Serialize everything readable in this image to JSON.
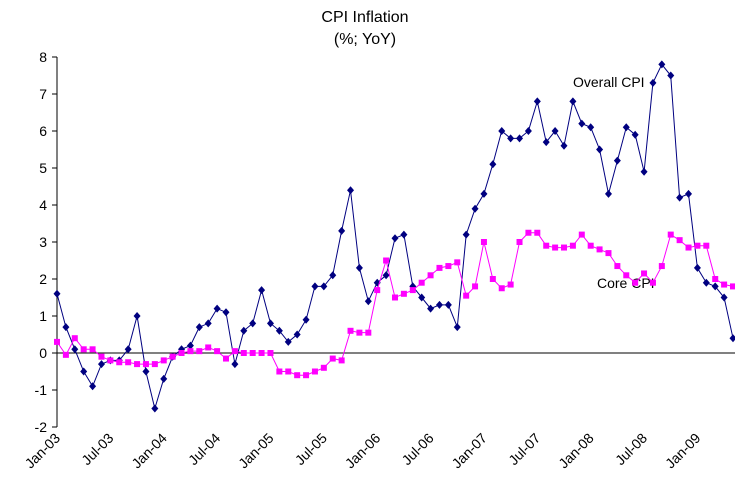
{
  "chart_data": {
    "type": "line",
    "title": "CPI Inflation",
    "subtitle": "(%; YoY)",
    "categories": [
      "Jan-03",
      null,
      null,
      null,
      null,
      null,
      "Jul-03",
      null,
      null,
      null,
      null,
      null,
      "Jan-04",
      null,
      null,
      null,
      null,
      null,
      "Jul-04",
      null,
      null,
      null,
      null,
      null,
      "Jan-05",
      null,
      null,
      null,
      null,
      null,
      "Jul-05",
      null,
      null,
      null,
      null,
      null,
      "Jan-06",
      null,
      null,
      null,
      null,
      null,
      "Jul-06",
      null,
      null,
      null,
      null,
      null,
      "Jan-07",
      null,
      null,
      null,
      null,
      null,
      "Jul-07",
      null,
      null,
      null,
      null,
      null,
      "Jan-08",
      null,
      null,
      null,
      null,
      null,
      "Jul-08",
      null,
      null,
      null,
      null,
      null,
      "Jan-09",
      null,
      null,
      null,
      null
    ],
    "series": [
      {
        "name": "Overall CPI",
        "color": "#000080",
        "marker": "diamond",
        "values": [
          1.6,
          0.7,
          0.1,
          -0.5,
          -0.9,
          -0.3,
          -0.2,
          -0.2,
          0.1,
          1.0,
          -0.5,
          -1.5,
          -0.7,
          -0.1,
          0.1,
          0.2,
          0.7,
          0.8,
          1.2,
          1.1,
          -0.3,
          0.6,
          0.8,
          1.7,
          0.8,
          0.6,
          0.3,
          0.5,
          0.9,
          1.8,
          1.8,
          2.1,
          3.3,
          4.4,
          2.3,
          1.4,
          1.9,
          2.1,
          3.1,
          3.2,
          1.8,
          1.5,
          1.2,
          1.3,
          1.3,
          0.7,
          3.2,
          3.9,
          4.3,
          5.1,
          6.0,
          5.8,
          5.8,
          6.0,
          6.8,
          5.7,
          6.0,
          5.6,
          6.8,
          6.2,
          6.1,
          5.5,
          4.3,
          5.2,
          6.1,
          5.9,
          4.9,
          7.3,
          7.8,
          7.5,
          4.2,
          4.3,
          2.3,
          1.9,
          1.8,
          1.5,
          0.4
        ]
      },
      {
        "name": "Core CPI",
        "color": "#ff00ff",
        "marker": "square",
        "values": [
          0.3,
          -0.05,
          0.4,
          0.1,
          0.1,
          -0.1,
          -0.2,
          -0.25,
          -0.25,
          -0.3,
          -0.3,
          -0.3,
          -0.2,
          -0.1,
          0.0,
          0.05,
          0.05,
          0.15,
          0.05,
          -0.15,
          0.05,
          0.0,
          0.0,
          0.0,
          0.0,
          -0.5,
          -0.5,
          -0.6,
          -0.6,
          -0.5,
          -0.4,
          -0.15,
          -0.2,
          0.6,
          0.55,
          0.55,
          1.7,
          2.5,
          1.5,
          1.6,
          1.7,
          1.9,
          2.1,
          2.3,
          2.35,
          2.45,
          1.55,
          1.8,
          3.0,
          2.0,
          1.75,
          1.85,
          3.0,
          3.25,
          3.25,
          2.9,
          2.85,
          2.85,
          2.9,
          3.2,
          2.9,
          2.8,
          2.7,
          2.35,
          2.1,
          1.9,
          2.15,
          1.9,
          2.35,
          3.2,
          3.05,
          2.85,
          2.9,
          2.9,
          2.0,
          1.85,
          1.8
        ]
      }
    ],
    "ylim": [
      -2,
      8
    ],
    "yticks": [
      -2,
      -1,
      0,
      1,
      2,
      3,
      4,
      5,
      6,
      7,
      8
    ],
    "grid": false
  }
}
